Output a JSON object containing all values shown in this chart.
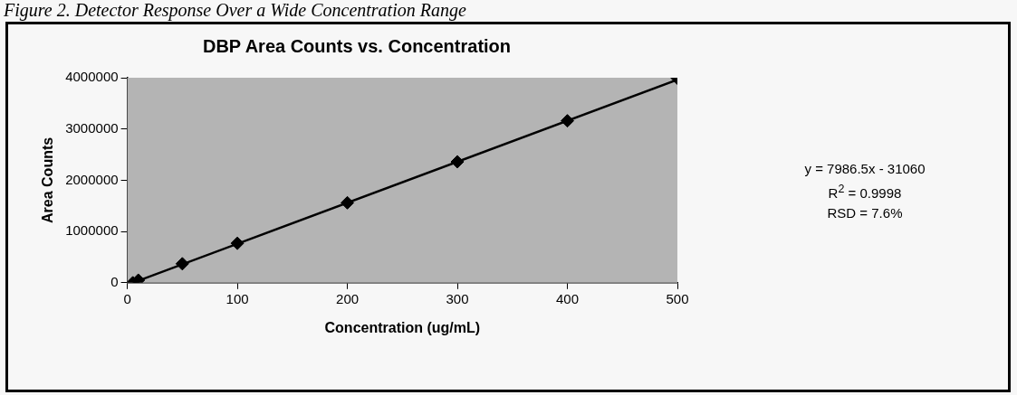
{
  "chart_data": {
    "type": "scatter",
    "title": "DBP Area Counts vs. Concentration",
    "xlabel": "Concentration (ug/mL)",
    "ylabel": "Area Counts",
    "x": [
      5,
      10,
      50,
      100,
      200,
      300,
      400,
      500
    ],
    "series": [
      {
        "color": "#000000",
        "marker": "diamond",
        "values": [
          0,
          50000,
          370000,
          770000,
          1560000,
          2360000,
          3160000,
          3990000
        ]
      },
      {
        "type": "line",
        "color": "#000000",
        "marker": "none",
        "x": [
          5,
          500
        ],
        "values": [
          0,
          3960000
        ]
      }
    ],
    "xlim": [
      0,
      500
    ],
    "xticks": [
      0,
      100,
      200,
      300,
      400,
      500
    ],
    "ylim": [
      0,
      4000000
    ],
    "yticks": [
      0,
      1000000,
      2000000,
      3000000,
      4000000
    ],
    "grid": false,
    "legend": false,
    "annotations": [
      "Figure 2. Detector Response Over a Wide Concentration Range",
      "y = 7986.5x - 31060",
      "R$^{2}$ = 0.9998",
      "RSD = 7.6%"
    ]
  }
}
